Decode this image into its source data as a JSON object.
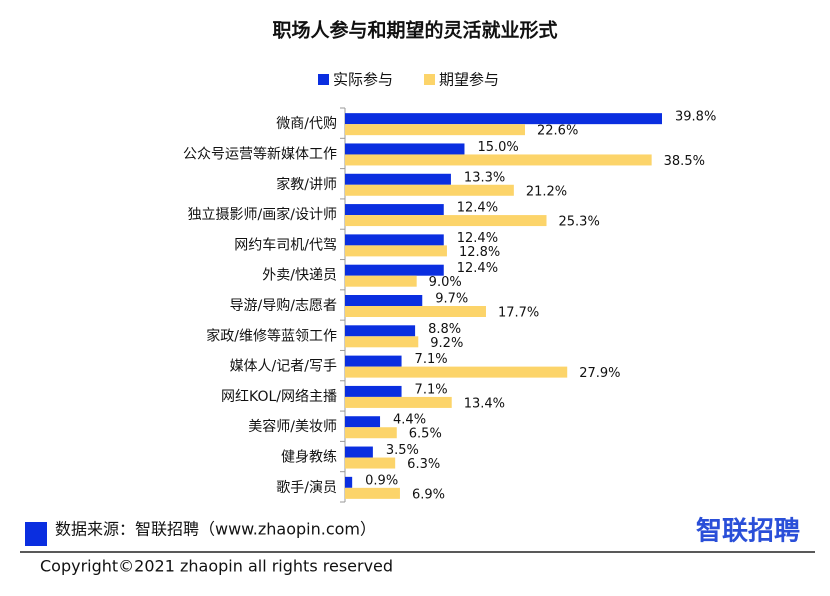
{
  "chart_data": {
    "type": "bar",
    "orientation": "horizontal",
    "title": "职场人参与和期望的灵活就业形式",
    "categories": [
      "微商/代购",
      "公众号运营等新媒体工作",
      "家教/讲师",
      "独立摄影师/画家/设计师",
      "网约车司机/代驾",
      "外卖/快递员",
      "导游/导购/志愿者",
      "家政/维修等蓝领工作",
      "媒体人/记者/写手",
      "网红KOL/网络主播",
      "美容师/美妆师",
      "健身教练",
      "歌手/演员"
    ],
    "series": [
      {
        "name": "实际参与",
        "color": "#0a2ee0",
        "values": [
          39.8,
          15.0,
          13.3,
          12.4,
          12.4,
          12.4,
          9.7,
          8.8,
          7.1,
          7.1,
          4.4,
          3.5,
          0.9
        ],
        "value_labels": [
          "39.8%",
          "15.0%",
          "13.3%",
          "12.4%",
          "12.4%",
          "12.4%",
          "9.7%",
          "8.8%",
          "7.1%",
          "7.1%",
          "4.4%",
          "3.5%",
          "0.9%"
        ]
      },
      {
        "name": "期望参与",
        "color": "#fcd46a",
        "values": [
          22.6,
          38.5,
          21.2,
          25.3,
          12.8,
          9.0,
          17.7,
          9.2,
          27.9,
          13.4,
          6.5,
          6.3,
          6.9
        ],
        "value_labels": [
          "22.6%",
          "38.5%",
          "21.2%",
          "25.3%",
          "12.8%",
          "9.0%",
          "17.7%",
          "9.2%",
          "27.9%",
          "13.4%",
          "6.5%",
          "6.3%",
          "6.9%"
        ]
      }
    ],
    "legend": "top"
  },
  "footer": {
    "source": "数据来源：智联招聘（www.zhaopin.com）",
    "logo": "智联招聘",
    "copyright": "Copyright©2021 zhaopin all rights reserved"
  }
}
